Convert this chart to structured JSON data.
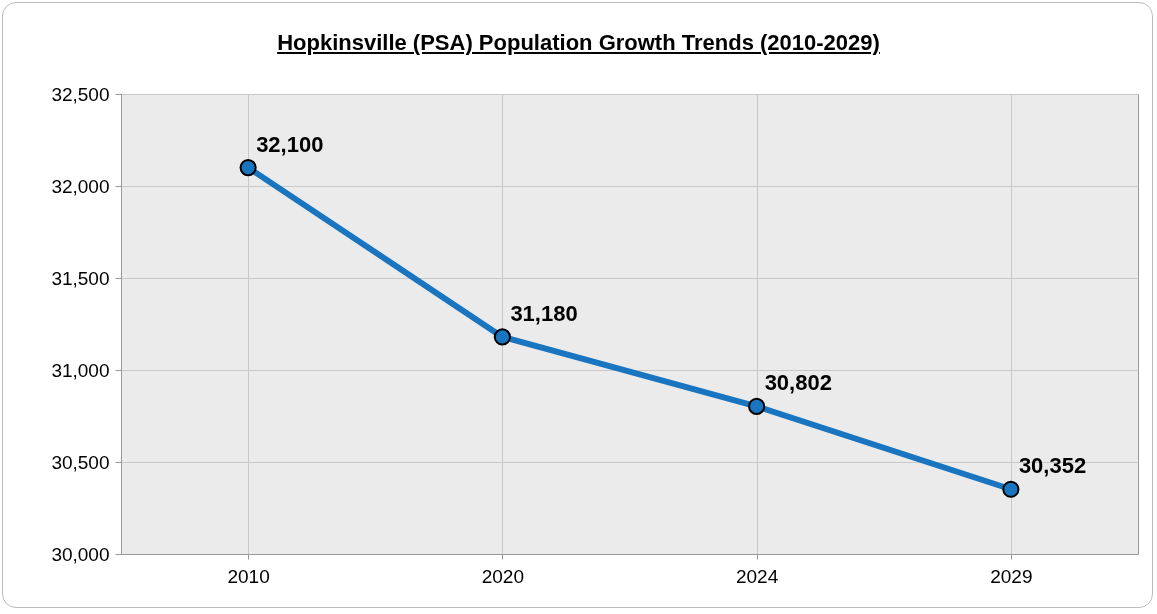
{
  "chart_data": {
    "type": "line",
    "title": "Hopkinsville (PSA) Population Growth Trends (2010-2029)",
    "categories": [
      "2010",
      "2020",
      "2024",
      "2029"
    ],
    "series": [
      {
        "color": "#1a75c0",
        "values": [
          32100,
          31180,
          30802,
          30352
        ],
        "value_labels": [
          "32,100",
          "31,180",
          "30,802",
          "30,352"
        ]
      }
    ],
    "ylim": [
      30000,
      32500
    ],
    "yticks": [
      {
        "value": 30000,
        "label": "30,000"
      },
      {
        "value": 30500,
        "label": "30,500"
      },
      {
        "value": 31000,
        "label": "31,000"
      },
      {
        "value": 31500,
        "label": "31,500"
      },
      {
        "value": 32000,
        "label": "32,000"
      },
      {
        "value": 32500,
        "label": "32,500"
      }
    ],
    "grid": true,
    "marker": "circle",
    "line_style": "solid"
  }
}
